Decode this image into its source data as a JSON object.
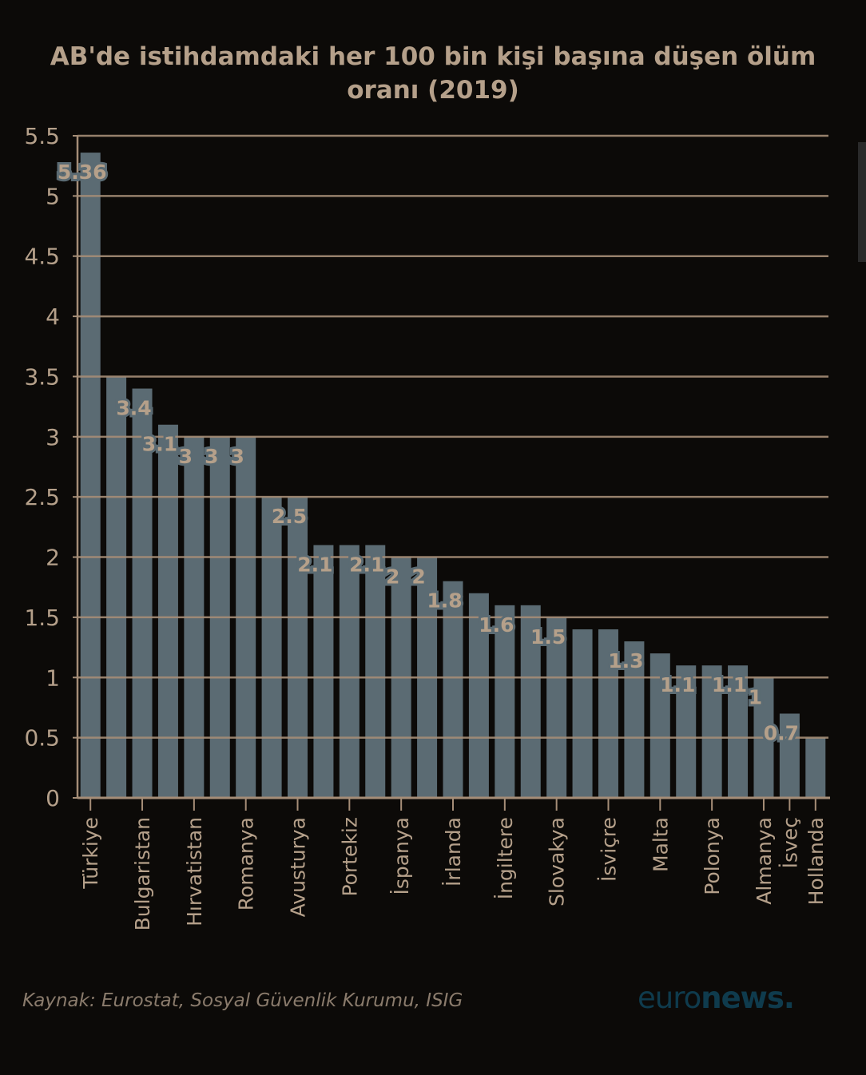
{
  "chart_data": {
    "type": "bar",
    "title": "AB'de istihdamdaki her 100 bin kişi başına düşen ölüm oranı (2019)",
    "xlabel": "",
    "ylabel": "",
    "ylim": [
      0,
      5.5
    ],
    "yticks": [
      "0",
      "0.5",
      "1",
      "1.5",
      "2",
      "2.5",
      "3",
      "3.5",
      "4",
      "4.5",
      "5",
      "5.5"
    ],
    "grid": true,
    "categories": [
      "Türkiye",
      "",
      "Bulgaristan",
      "",
      "Hırvatistan",
      "",
      "Romanya",
      "",
      "Avusturya",
      "",
      "Portekiz",
      "",
      "İspanya",
      "",
      "İrlanda",
      "",
      "İngiltere",
      "",
      "Slovakya",
      "",
      "İsviçre",
      "",
      "Malta",
      "",
      "Polonya",
      "",
      "Almanya",
      "İsveç",
      "Hollanda"
    ],
    "values": [
      5.36,
      3.5,
      3.4,
      3.1,
      3,
      3,
      3,
      2.5,
      2.5,
      2.1,
      2.1,
      2.1,
      2,
      2,
      1.8,
      1.7,
      1.6,
      1.6,
      1.5,
      1.4,
      1.4,
      1.3,
      1.2,
      1.1,
      1.1,
      1.1,
      1,
      0.7,
      0.5
    ],
    "data_labels": [
      "5.36",
      "",
      "3.4",
      "3.1",
      "3",
      "3",
      "3",
      "",
      "2.5",
      "2.1",
      "",
      "2.1",
      "2",
      "2",
      "1.8",
      "",
      "1.6",
      "",
      "1.5",
      "",
      "",
      "1.3",
      "",
      "1.1",
      "",
      "1.1",
      "1",
      "0.7",
      ""
    ],
    "colors": {
      "bar": "#5b6b73",
      "text": "#b5a08a",
      "grid": "#a58d77"
    }
  },
  "footer": {
    "source": "Kaynak: Eurostat, Sosyal Güvenlik Kurumu, ISIG",
    "logo_light": "euro",
    "logo_bold": "news."
  }
}
